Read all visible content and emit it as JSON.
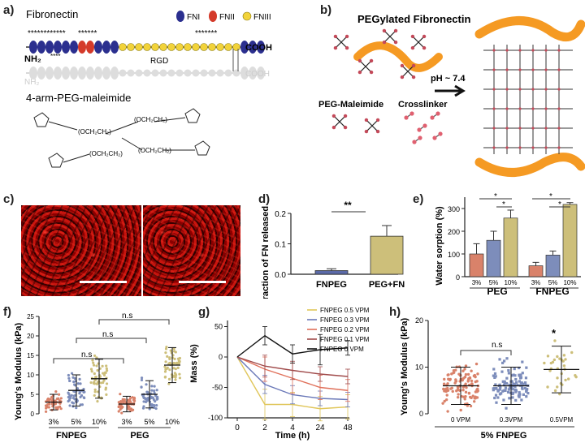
{
  "panel_a": {
    "label": "a)",
    "title": "Fibronectin",
    "legend": [
      "FNI",
      "FNII",
      "FNIII"
    ],
    "legend_colors": [
      "#2b2f8f",
      "#d43a2a",
      "#f2d33a"
    ],
    "nh2": "NH₂",
    "cooh": "COOH",
    "rgd": "RGD",
    "stars_1": "************",
    "stars_2": "******",
    "stars_3": "****",
    "stars_4": "*******",
    "peg_title": "4-arm-PEG-maleimide",
    "peg_arm": "(OCH₂CH₂)",
    "peg_n": "n"
  },
  "panel_b": {
    "label": "b)",
    "title": "PEGylated Fibronectin",
    "peg_mal": "PEG-Maleimide",
    "crosslinker": "Crosslinker",
    "ph": "pH ~ 7.4"
  },
  "panel_c": {
    "label": "c)"
  },
  "panel_d": {
    "label": "d)",
    "ylabel": "Fraction of FN released",
    "sig": "**",
    "chart_data": {
      "type": "bar",
      "categories": [
        "FNPEG",
        "PEG+FN"
      ],
      "values": [
        0.012,
        0.125
      ],
      "errors": [
        0.006,
        0.035
      ],
      "ylim": [
        0,
        0.2
      ],
      "yticks": [
        "0.0",
        "0.1",
        "0.2"
      ],
      "colors": [
        "#5b6aa8",
        "#cdbf7a"
      ]
    }
  },
  "panel_e": {
    "label": "e)",
    "ylabel": "Water sorption (%)",
    "groups": [
      "PEG",
      "FNPEG"
    ],
    "sig": "*",
    "chart_data": {
      "type": "bar",
      "categories": [
        "3%",
        "5%",
        "10%",
        "3%",
        "5%",
        "10%"
      ],
      "values": [
        100,
        160,
        258,
        48,
        95,
        318
      ],
      "errors": [
        45,
        40,
        35,
        15,
        18,
        8
      ],
      "ylim": [
        0,
        350
      ],
      "yticks": [
        "0",
        "100",
        "200",
        "300"
      ],
      "colors": [
        "#d9826a",
        "#7d8dbb",
        "#cdbf7a",
        "#d9826a",
        "#7d8dbb",
        "#cdbf7a"
      ]
    }
  },
  "panel_f": {
    "label": "f)",
    "ylabel": "Young's Modulus (kPa)",
    "groups": [
      "FNPEG",
      "PEG"
    ],
    "ns": "n.s",
    "chart_data": {
      "type": "scatter",
      "categories": [
        "3%",
        "5%",
        "10%",
        "3%",
        "5%",
        "10%"
      ],
      "means": [
        3,
        6,
        9,
        2.5,
        5,
        12.5
      ],
      "sd": [
        2,
        4,
        5,
        2,
        3.5,
        4.5
      ],
      "ylim": [
        0,
        25
      ],
      "yticks": [
        "0",
        "5",
        "10",
        "15",
        "20",
        "25"
      ],
      "colors": [
        "#d9826a",
        "#7d8dbb",
        "#cdbf7a",
        "#d9826a",
        "#7d8dbb",
        "#cdbf7a"
      ]
    }
  },
  "panel_g": {
    "label": "g)",
    "ylabel": "Mass (%)",
    "xlabel": "Time (h)",
    "chart_data": {
      "type": "line",
      "x": [
        "0",
        "2",
        "4",
        "24",
        "48"
      ],
      "yticks": [
        "-100",
        "-50",
        "0",
        "50"
      ],
      "ylim": [
        -100,
        60
      ],
      "series": [
        {
          "name": "FNPEG 0.5 VPM",
          "color": "#e0c65a",
          "values": [
            0,
            -78,
            -78,
            -85,
            -82
          ]
        },
        {
          "name": "FNPEG 0.3 VPM",
          "color": "#6a78b8",
          "values": [
            0,
            -45,
            -62,
            -68,
            -70
          ]
        },
        {
          "name": "FNPEG 0.2 VPM",
          "color": "#e0705a",
          "values": [
            0,
            -20,
            -35,
            -50,
            -55
          ]
        },
        {
          "name": "FNPEG 0.1 VPM",
          "color": "#a04a4a",
          "values": [
            0,
            -15,
            -22,
            -28,
            -32
          ]
        },
        {
          "name": "FNPEG 0 VPM",
          "color": "#111111",
          "values": [
            0,
            35,
            5,
            12,
            15
          ]
        }
      ],
      "errors": [
        [
          0,
          25,
          20,
          20,
          20
        ],
        [
          0,
          15,
          15,
          12,
          12
        ],
        [
          0,
          20,
          25,
          20,
          18
        ],
        [
          0,
          18,
          15,
          12,
          12
        ],
        [
          0,
          15,
          15,
          25,
          12
        ]
      ]
    }
  },
  "panel_h": {
    "label": "h)",
    "ylabel": "Young's Modulus (kPa)",
    "xlabel": "5% FNPEG",
    "ns": "n.s",
    "star": "*",
    "chart_data": {
      "type": "scatter",
      "categories": [
        "0 VPM",
        "0.3VPM",
        "0.5VPM"
      ],
      "means": [
        6,
        6,
        9.5
      ],
      "sd": [
        4,
        4,
        5
      ],
      "ylim": [
        0,
        20
      ],
      "yticks": [
        "0",
        "10",
        "20"
      ],
      "colors": [
        "#d9826a",
        "#7d8dbb",
        "#cdbf7a"
      ]
    }
  }
}
